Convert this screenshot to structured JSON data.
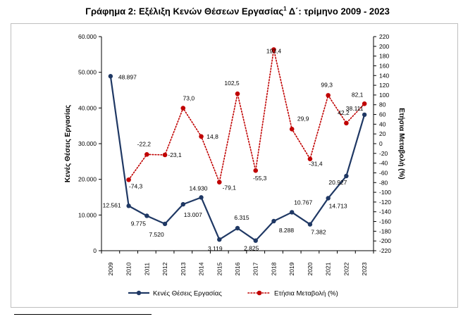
{
  "title": {
    "main": "Γράφημα 2: Εξέλιξη Κενών Θέσεων Εργασίας",
    "sup": "1",
    "tail": " Δ΄: τρίμηνο 2009 - 2023"
  },
  "chart_data": {
    "type": "line",
    "categories": [
      "2009",
      "2010",
      "2011",
      "2012",
      "2013",
      "2014",
      "2015",
      "2016",
      "2017",
      "2018",
      "2019",
      "2020",
      "2021",
      "2022",
      "2023"
    ],
    "series": [
      {
        "name": "Κενές Θέσεις Εργασίας",
        "axis": "left",
        "color": "#1f3864",
        "style": "solid",
        "values": [
          48897,
          12561,
          9775,
          7520,
          13007,
          14930,
          3119,
          6315,
          2825,
          8288,
          10767,
          7382,
          14713,
          20927,
          38111
        ],
        "labels": [
          "48.897",
          "12.561",
          "9.775",
          "7.520",
          "13.007",
          "14.930",
          "3.119",
          "6.315",
          "2.825",
          "8.288",
          "10.767",
          "7.382",
          "14.713",
          "20.927",
          "38.111"
        ]
      },
      {
        "name": "Ετήσια Μεταβολή  (%)",
        "axis": "right",
        "color": "#c00000",
        "style": "dotted",
        "values": [
          null,
          -74.3,
          -22.2,
          -23.1,
          73.0,
          14.8,
          -79.1,
          102.5,
          -55.3,
          193.4,
          29.9,
          -31.4,
          99.3,
          42.2,
          82.1
        ],
        "labels": [
          "",
          "-74,3",
          "-22,2",
          "-23,1",
          "73,0",
          "14,8",
          "-79,1",
          "102,5",
          "-55,3",
          "193,4",
          "29,9",
          "-31,4",
          "99,3",
          "42,2",
          "82,1"
        ]
      }
    ],
    "ylabel": "Κενές Θέσεις Εργασίας",
    "y2label": "Ετήσια Μεταβολή (%)",
    "ylim": [
      0,
      60000
    ],
    "y_ticks": [
      0,
      10000,
      20000,
      30000,
      40000,
      50000,
      60000
    ],
    "y_tick_labels": [
      "0",
      "10.000",
      "20.000",
      "30.000",
      "40.000",
      "50.000",
      "60.000"
    ],
    "y2lim": [
      -220,
      220
    ],
    "y2_ticks": [
      -220,
      -200,
      -180,
      -160,
      -140,
      -120,
      -100,
      -80,
      -60,
      -40,
      -20,
      0,
      20,
      40,
      60,
      80,
      100,
      120,
      140,
      160,
      180,
      200,
      220
    ],
    "grid": false,
    "legend": "bottom"
  }
}
